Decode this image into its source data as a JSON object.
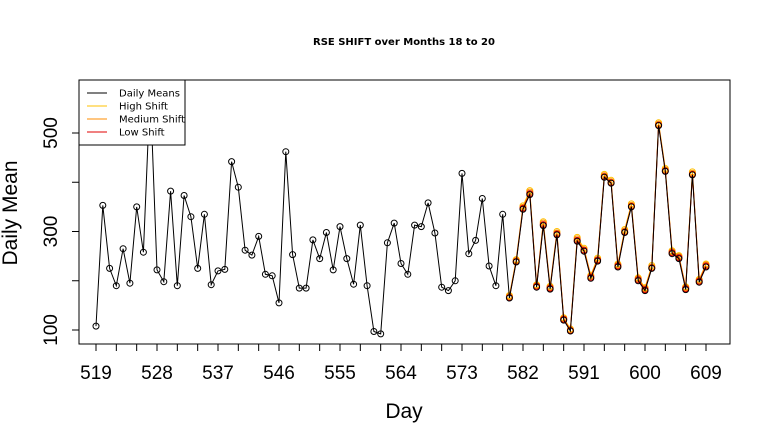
{
  "chart_data": {
    "type": "line",
    "title": "RSE SHIFT over Months 18 to 20",
    "xlabel": "Day",
    "ylabel": "Daily Mean",
    "xlim": [
      519,
      609
    ],
    "ylim": [
      75,
      605
    ],
    "x_ticks": [
      519,
      528,
      537,
      546,
      555,
      564,
      573,
      582,
      591,
      600,
      609
    ],
    "y_ticks": [
      100,
      300,
      500
    ],
    "legend_position": "top-left",
    "legend": [
      {
        "label": "Daily Means",
        "color": "#000000"
      },
      {
        "label": "High Shift",
        "color": "#FFC000"
      },
      {
        "label": "Medium Shift",
        "color": "#FF8C00"
      },
      {
        "label": "Low Shift",
        "color": "#E00000"
      }
    ],
    "daily_means": {
      "x_start": 519,
      "values": [
        108,
        353,
        225,
        190,
        265,
        195,
        350,
        258,
        590,
        222,
        198,
        382,
        190,
        373,
        330,
        225,
        335,
        192,
        220,
        223,
        442,
        390,
        262,
        252,
        290,
        213,
        210,
        155,
        462,
        253,
        185,
        185,
        283,
        245,
        298,
        222,
        310,
        245,
        193,
        313,
        190,
        97,
        92,
        277,
        317,
        235,
        213,
        313,
        310,
        358,
        297,
        187,
        180,
        200,
        418,
        255,
        282,
        367,
        230,
        190,
        335,
        165,
        238,
        345,
        375,
        187,
        312,
        183,
        293,
        120,
        98,
        280,
        260,
        205,
        240,
        410,
        398,
        228,
        298,
        350,
        200,
        180,
        225,
        515,
        422,
        255,
        245,
        182,
        415,
        197,
        228
      ]
    },
    "shift_series": [
      {
        "name": "High Shift",
        "color": "#FFC000",
        "x_start": 580,
        "values": [
          170,
          243,
          352,
          383,
          192,
          320,
          189,
          300,
          125,
          102,
          288,
          266,
          211,
          246,
          416,
          404,
          234,
          304,
          356,
          206,
          186,
          231,
          521,
          428,
          261,
          251,
          188,
          421,
          203,
          234
        ]
      },
      {
        "name": "Medium Shift",
        "color": "#FF8C00",
        "x_start": 580,
        "values": [
          168,
          241,
          349,
          380,
          190,
          317,
          187,
          297,
          123,
          100,
          285,
          263,
          209,
          243,
          413,
          401,
          232,
          301,
          353,
          204,
          184,
          228,
          518,
          425,
          259,
          249,
          186,
          418,
          201,
          232
        ]
      },
      {
        "name": "Low Shift",
        "color": "#E00000",
        "x_start": 580,
        "values": [
          166,
          239,
          347,
          377,
          189,
          314,
          185,
          295,
          122,
          99,
          282,
          262,
          207,
          242,
          411,
          399,
          230,
          299,
          351,
          202,
          182,
          226,
          516,
          423,
          257,
          247,
          184,
          416,
          199,
          230
        ]
      }
    ]
  }
}
